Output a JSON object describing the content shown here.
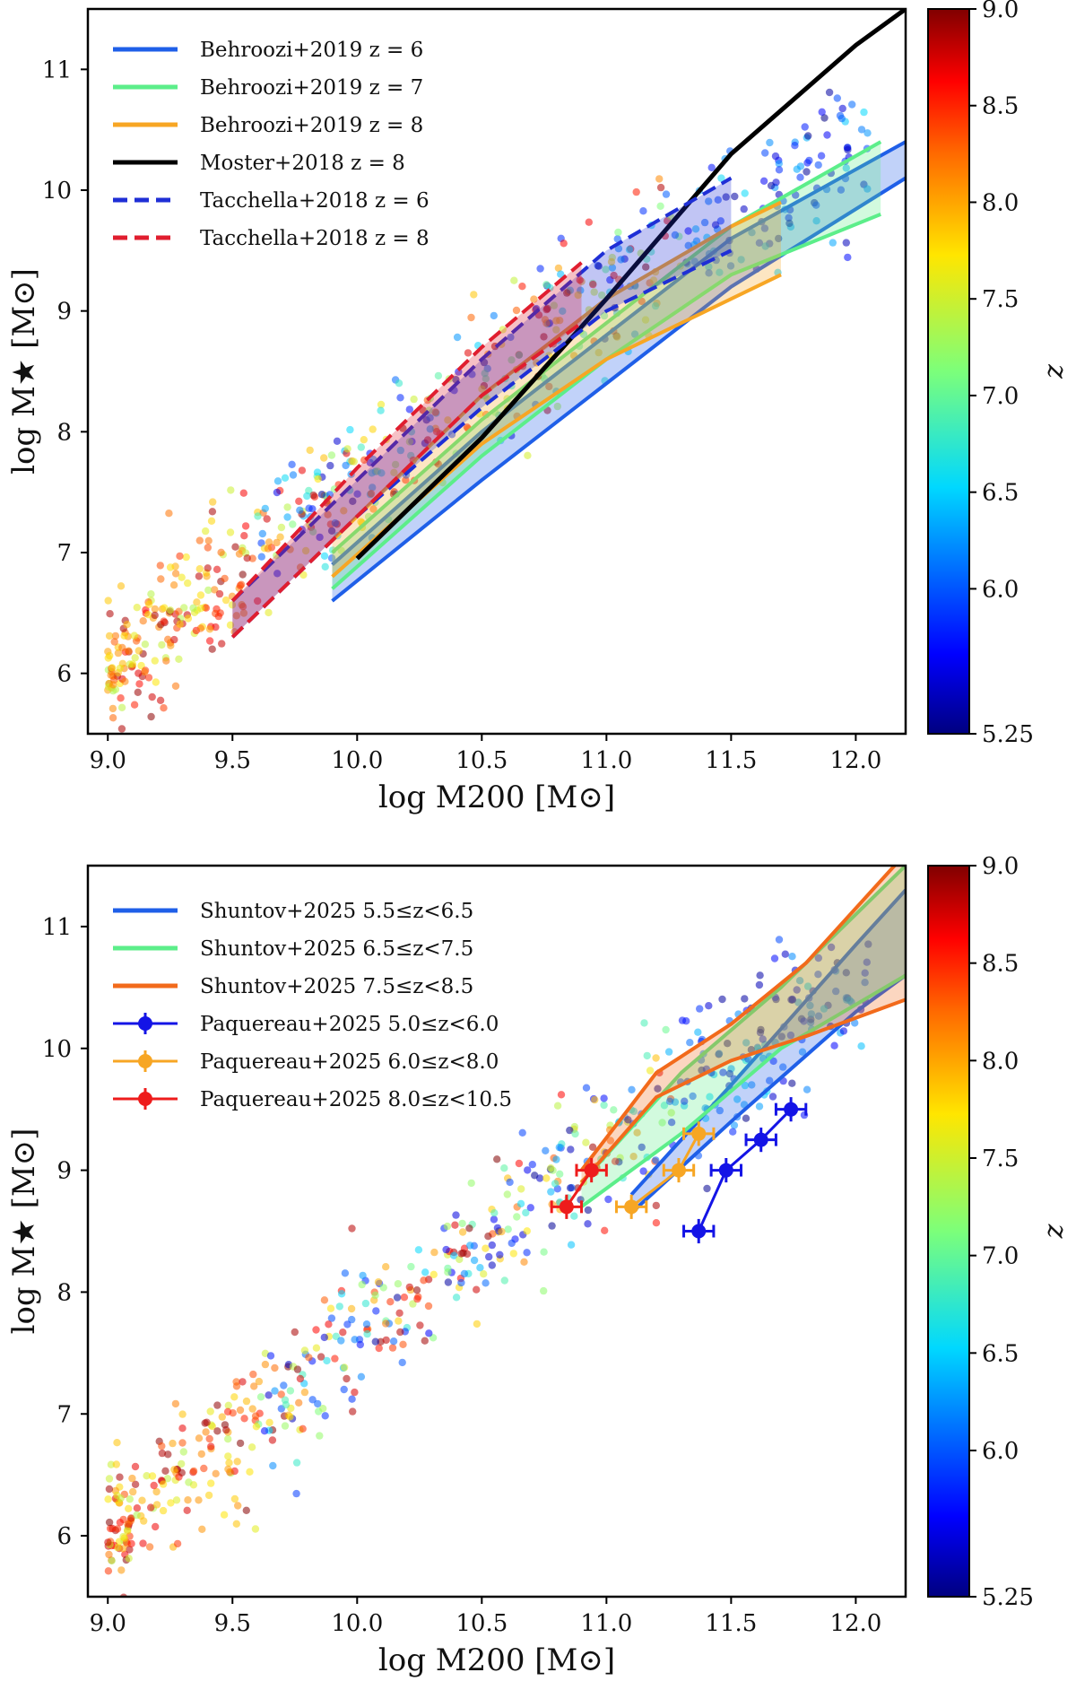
{
  "chart_data": [
    {
      "type": "scatter",
      "panel": "top",
      "xlabel": "log M200 [M⊙]",
      "ylabel": "log M★ [M⊙]",
      "xlim": [
        8.92,
        12.2
      ],
      "ylim": [
        5.5,
        11.5
      ],
      "xticks": [
        "9.0",
        "9.5",
        "10.0",
        "10.5",
        "11.0",
        "11.5",
        "12.0"
      ],
      "yticks": [
        "6",
        "7",
        "8",
        "9",
        "10",
        "11"
      ],
      "legend_position": "top-left",
      "colorbar": {
        "label": "z",
        "range": [
          5.25,
          9.0
        ],
        "ticks": [
          "5.25",
          "6.0",
          "6.5",
          "7.0",
          "7.5",
          "8.0",
          "8.5",
          "9.0"
        ]
      },
      "series": [
        {
          "name": "Behroozi+2019 z = 6",
          "kind": "band",
          "color": "#1f5fe8",
          "x": [
            9.9,
            10.5,
            11.0,
            11.5,
            12.2
          ],
          "lower": [
            6.6,
            7.6,
            8.4,
            9.2,
            10.1
          ],
          "upper": [
            6.9,
            8.0,
            8.8,
            9.6,
            10.4
          ]
        },
        {
          "name": "Behroozi+2019 z = 7",
          "kind": "band",
          "color": "#5cee8a",
          "x": [
            9.9,
            10.5,
            11.0,
            11.5,
            12.1
          ],
          "lower": [
            6.7,
            7.8,
            8.6,
            9.3,
            9.8
          ],
          "upper": [
            7.0,
            8.1,
            8.9,
            9.7,
            10.4
          ]
        },
        {
          "name": "Behroozi+2019 z = 8",
          "kind": "band",
          "color": "#f7a624",
          "x": [
            9.9,
            10.5,
            11.0,
            11.5,
            11.7
          ],
          "lower": [
            6.8,
            7.9,
            8.6,
            9.1,
            9.3
          ],
          "upper": [
            7.1,
            8.3,
            9.1,
            9.7,
            9.9
          ]
        },
        {
          "name": "Moster+2018 z = 8",
          "kind": "line",
          "color": "#000000",
          "x": [
            10.0,
            10.5,
            11.0,
            11.5,
            12.0,
            12.2
          ],
          "y": [
            6.95,
            7.95,
            9.1,
            10.3,
            11.2,
            11.5
          ]
        },
        {
          "name": "Tacchella+2018 z = 6",
          "kind": "band",
          "color": "#1f2fd6",
          "x": [
            9.5,
            10.0,
            10.5,
            11.0,
            11.5
          ],
          "lower": [
            6.3,
            7.3,
            8.2,
            9.0,
            9.5
          ],
          "upper": [
            6.6,
            7.6,
            8.6,
            9.5,
            10.1
          ]
        },
        {
          "name": "Tacchella+2018 z = 8",
          "kind": "band",
          "color": "#e01e2f",
          "x": [
            9.5,
            10.0,
            10.5,
            10.9
          ],
          "lower": [
            6.3,
            7.3,
            8.3,
            8.9
          ],
          "upper": [
            6.6,
            7.7,
            8.7,
            9.4
          ]
        }
      ]
    },
    {
      "type": "scatter",
      "panel": "bottom",
      "xlabel": "log M200 [M⊙]",
      "ylabel": "log M★ [M⊙]",
      "xlim": [
        8.92,
        12.2
      ],
      "ylim": [
        5.5,
        11.5
      ],
      "xticks": [
        "9.0",
        "9.5",
        "10.0",
        "10.5",
        "11.0",
        "11.5",
        "12.0"
      ],
      "yticks": [
        "6",
        "7",
        "8",
        "9",
        "10",
        "11"
      ],
      "legend_position": "top-left",
      "colorbar": {
        "label": "z",
        "range": [
          5.25,
          9.0
        ],
        "ticks": [
          "5.25",
          "6.0",
          "6.5",
          "7.0",
          "7.5",
          "8.0",
          "8.5",
          "9.0"
        ]
      },
      "series": [
        {
          "name": "Shuntov+2025 5.5≤z<6.5",
          "kind": "band",
          "color": "#1f5fe8",
          "x": [
            11.1,
            11.5,
            12.0,
            12.2
          ],
          "lower": [
            8.65,
            9.4,
            10.3,
            10.6
          ],
          "upper": [
            8.8,
            9.7,
            10.85,
            11.3
          ]
        },
        {
          "name": "Shuntov+2025 6.5≤z<7.5",
          "kind": "band",
          "color": "#5cee8a",
          "x": [
            10.9,
            11.3,
            11.7,
            12.2
          ],
          "lower": [
            8.7,
            9.3,
            10.0,
            10.6
          ],
          "upper": [
            8.9,
            9.8,
            10.5,
            11.5
          ]
        },
        {
          "name": "Shuntov+2025 7.5≤z<8.5",
          "kind": "band",
          "color": "#f26a1b",
          "x": [
            10.9,
            11.2,
            11.5,
            11.8,
            12.2
          ],
          "lower": [
            8.9,
            9.6,
            9.9,
            10.1,
            10.4
          ],
          "upper": [
            9.0,
            9.8,
            10.2,
            10.7,
            11.6
          ]
        },
        {
          "name": "Paquereau+2025 5.0≤z<6.0",
          "kind": "errorbar",
          "color": "#1414e6",
          "x": [
            11.37,
            11.48,
            11.62,
            11.74
          ],
          "y": [
            8.5,
            9.0,
            9.25,
            9.5
          ]
        },
        {
          "name": "Paquereau+2025 6.0≤z<8.0",
          "kind": "errorbar",
          "color": "#f7a624",
          "x": [
            11.1,
            11.29,
            11.37
          ],
          "y": [
            8.7,
            9.0,
            9.3
          ]
        },
        {
          "name": "Paquereau+2025 8.0≤z<10.5",
          "kind": "errorbar",
          "color": "#ee1c1c",
          "x": [
            10.84,
            10.94
          ],
          "y": [
            8.7,
            9.0
          ]
        }
      ]
    }
  ]
}
